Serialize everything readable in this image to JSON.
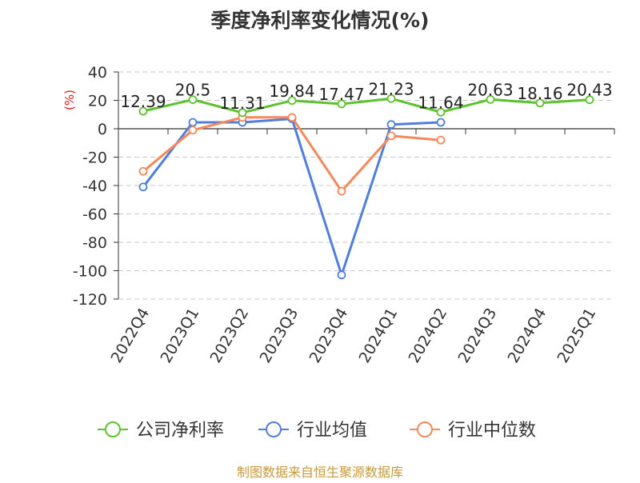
{
  "chart_data": {
    "type": "line",
    "title": "季度净利率变化情况(%)",
    "ylabel": "(%)",
    "xlabel": "",
    "categories": [
      "2022Q4",
      "2023Q1",
      "2023Q2",
      "2023Q3",
      "2023Q4",
      "2024Q1",
      "2024Q2",
      "2024Q3",
      "2024Q4",
      "2025Q1"
    ],
    "ylim": [
      -120,
      40
    ],
    "yticks": [
      40,
      20,
      0,
      -20,
      -40,
      -60,
      -80,
      -100,
      -120
    ],
    "grid": true,
    "legend_position": "bottom",
    "series": [
      {
        "name": "公司净利率",
        "color": "#5dc22f",
        "values": [
          12.39,
          20.5,
          11.31,
          19.84,
          17.47,
          21.23,
          11.64,
          20.63,
          18.16,
          20.43
        ],
        "labels": [
          "12.39",
          "20.5",
          "11.31",
          "19.84",
          "17.47",
          "21.23",
          "11.64",
          "20.63",
          "18.16",
          "20.43"
        ]
      },
      {
        "name": "行业均值",
        "color": "#4f7fdb",
        "values": [
          -41,
          4.5,
          4.5,
          7,
          -103,
          3,
          4.5,
          null,
          null,
          null
        ]
      },
      {
        "name": "行业中位数",
        "color": "#f5895b",
        "values": [
          -30,
          -1,
          8,
          8,
          -44,
          -5,
          -8,
          null,
          null,
          null
        ]
      }
    ]
  },
  "source": "制图数据来自恒生聚源数据库"
}
